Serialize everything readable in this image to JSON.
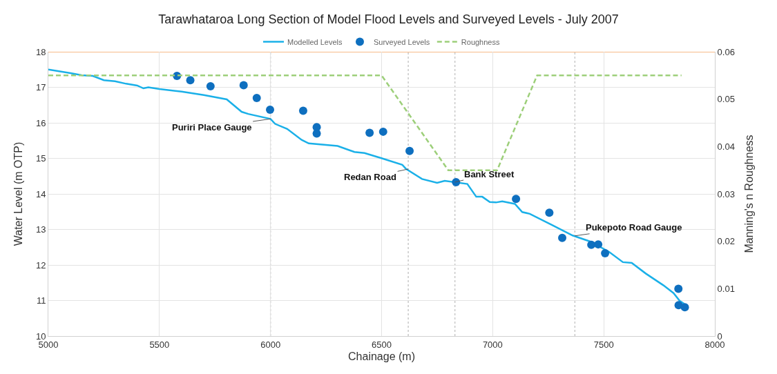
{
  "chart_data": {
    "type": "line",
    "title": "Tarawhataroa Long Section of Model Flood Levels and Surveyed Levels - July 2007",
    "xlabel": "Chainage (m)",
    "ylabel": "Water Level (m OTP)",
    "y2label": "Manning's n Roughness",
    "xlim": [
      5000,
      8000
    ],
    "xticks": [
      5000,
      5500,
      6000,
      6500,
      7000,
      7500,
      8000
    ],
    "ylim": [
      10,
      18
    ],
    "yticks": [
      10,
      11,
      12,
      13,
      14,
      15,
      16,
      17,
      18
    ],
    "y2lim": [
      0,
      0.06
    ],
    "y2ticks": [
      0,
      0.01,
      0.02,
      0.03,
      0.04,
      0.05,
      0.06
    ],
    "grid": true,
    "legend": "top",
    "series": [
      {
        "name": "Modelled Levels",
        "color": "#1ab0e8",
        "marker": "none",
        "line_style": "solid",
        "x": [
          5000,
          5100,
          5150,
          5200,
          5250,
          5300,
          5350,
          5400,
          5428,
          5450,
          5500,
          5600,
          5700,
          5803,
          5870,
          5900,
          6000,
          6021,
          6075,
          6140,
          6172,
          6302,
          6378,
          6423,
          6502,
          6593,
          6609,
          6682,
          6750,
          6784,
          6886,
          6926,
          6953,
          6987,
          7015,
          7043,
          7100,
          7133,
          7167,
          7269,
          7360,
          7439,
          7524,
          7586,
          7626,
          7689,
          7768,
          7814,
          7842,
          7859,
          7865
        ],
        "values": [
          17.5,
          17.4,
          17.34,
          17.32,
          17.2,
          17.17,
          17.1,
          17.05,
          16.97,
          17.0,
          16.95,
          16.88,
          16.78,
          16.66,
          16.31,
          16.25,
          16.11,
          15.97,
          15.83,
          15.52,
          15.42,
          15.35,
          15.18,
          15.15,
          15.0,
          14.82,
          14.71,
          14.42,
          14.31,
          14.37,
          14.28,
          13.92,
          13.92,
          13.77,
          13.76,
          13.79,
          13.72,
          13.49,
          13.44,
          13.12,
          12.83,
          12.66,
          12.37,
          12.08,
          12.06,
          11.76,
          11.43,
          11.21,
          10.99,
          10.92,
          10.83
        ]
      },
      {
        "name": "Surveyed Levels",
        "type": "scatter",
        "color": "#0e6fbf",
        "marker": "circle",
        "x": [
          5579,
          5639,
          5730,
          5879,
          5938,
          5998,
          6147,
          6208,
          6208,
          6446,
          6507,
          6626,
          6835,
          7105,
          7255,
          7313,
          7444,
          7475,
          7506,
          7836,
          7837,
          7865
        ],
        "values": [
          17.32,
          17.2,
          17.03,
          17.06,
          16.7,
          16.37,
          16.34,
          15.88,
          15.7,
          15.72,
          15.75,
          15.21,
          14.33,
          13.86,
          13.47,
          12.76,
          12.57,
          12.58,
          12.33,
          11.33,
          10.87,
          10.81
        ]
      },
      {
        "name": "Roughness",
        "axis": "y2",
        "color": "#9dcf7a",
        "marker": "none",
        "line_style": "dashed",
        "x": [
          5000,
          6500,
          6800,
          7020,
          7200,
          7850
        ],
        "values": [
          0.055,
          0.055,
          0.035,
          0.035,
          0.055,
          0.055
        ]
      }
    ],
    "ref_lines": [
      {
        "axis": "x",
        "value": 6000,
        "color": "#c8c8c8",
        "line_style": "dotted"
      },
      {
        "axis": "x",
        "value": 6620,
        "color": "#c8c8c8",
        "line_style": "dotted"
      },
      {
        "axis": "x",
        "value": 6830,
        "color": "#c8c8c8",
        "line_style": "dotted"
      },
      {
        "axis": "x",
        "value": 7370,
        "color": "#c8c8c8",
        "line_style": "dotted"
      },
      {
        "axis": "y",
        "value": 18,
        "color": "#f4a460",
        "line_style": "solid"
      }
    ],
    "annotations": [
      {
        "text": "Puriri Place Gauge",
        "x": 6000,
        "y": 16.11
      },
      {
        "text": "Redan Road",
        "x": 6620,
        "y": 14.7
      },
      {
        "text": "Bank Street",
        "x": 6830,
        "y": 14.33
      },
      {
        "text": "Pukepoto Road Gauge",
        "x": 7370,
        "y": 12.82
      }
    ]
  }
}
